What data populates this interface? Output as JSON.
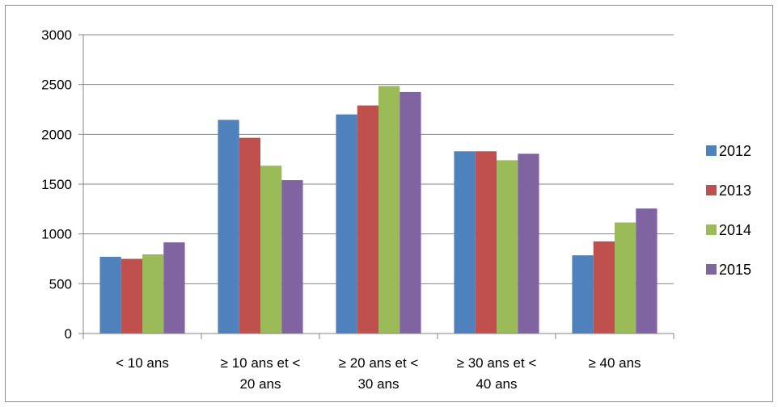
{
  "chart_data": {
    "type": "bar",
    "categories": [
      [
        "< 10 ans"
      ],
      [
        "≥ 10 ans et <",
        "20 ans"
      ],
      [
        "≥ 20 ans et <",
        "30 ans"
      ],
      [
        "≥ 30 ans et <",
        "40 ans"
      ],
      [
        "≥ 40 ans"
      ]
    ],
    "series": [
      {
        "name": "2012",
        "color": "#4f81bd",
        "values": [
          770,
          2145,
          2200,
          1830,
          785
        ]
      },
      {
        "name": "2013",
        "color": "#c0504d",
        "values": [
          750,
          1965,
          2290,
          1830,
          925
        ]
      },
      {
        "name": "2014",
        "color": "#9bbb59",
        "values": [
          795,
          1685,
          2485,
          1740,
          1115
        ]
      },
      {
        "name": "2015",
        "color": "#8064a2",
        "values": [
          915,
          1540,
          2425,
          1805,
          1255
        ]
      }
    ],
    "title": "",
    "xlabel": "",
    "ylabel": "",
    "ylim": [
      0,
      3000
    ],
    "yticks": [
      0,
      500,
      1000,
      1500,
      2000,
      2500,
      3000
    ],
    "grid": true,
    "legend_position": "right"
  }
}
